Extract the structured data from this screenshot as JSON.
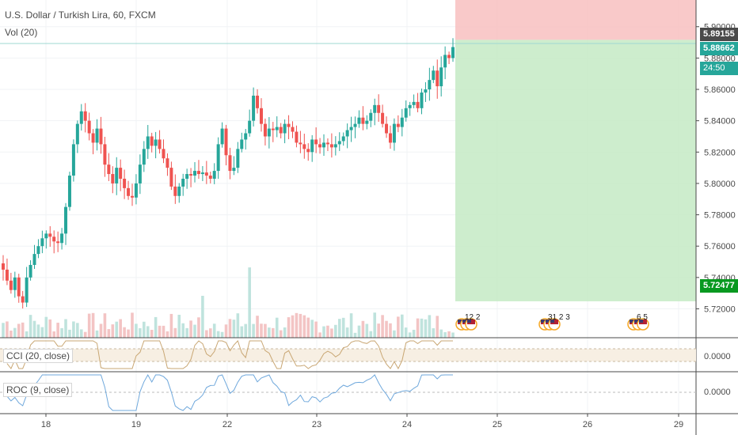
{
  "chart_data": {
    "type": "candlestick",
    "title": "U.S. Dollar / Turkish Lira, 60, FXCM",
    "volume_label": "Vol (20)",
    "y_ticks": [
      "5.90000",
      "5.88000",
      "5.86000",
      "5.84000",
      "5.82000",
      "5.80000",
      "5.78000",
      "5.76000",
      "5.74000",
      "5.72000",
      "5.70000"
    ],
    "ylim": [
      5.694,
      5.914
    ],
    "x_ticks": [
      "18",
      "19",
      "22",
      "23",
      "24",
      "25",
      "26",
      "29"
    ],
    "price_tags": {
      "stop": "5.89155",
      "last": "5.88662",
      "countdown": "24:50",
      "target": "5.72477"
    },
    "position_tool": {
      "entry": 5.8916,
      "stop": 5.914,
      "target": 5.7248
    },
    "events": [
      {
        "label": "12 2"
      },
      {
        "label": "31 2 3"
      },
      {
        "label": "6 5"
      }
    ],
    "cci": {
      "label": "CCI (20, close)",
      "value": "0.0000"
    },
    "roc": {
      "label": "ROC (9, close)",
      "value": "0.0000"
    },
    "series": [
      {
        "name": "close",
        "values": [
          5.745,
          5.738,
          5.732,
          5.74,
          5.728,
          5.724,
          5.74,
          5.748,
          5.755,
          5.76,
          5.765,
          5.768,
          5.766,
          5.763,
          5.762,
          5.768,
          5.785,
          5.805,
          5.825,
          5.838,
          5.846,
          5.84,
          5.832,
          5.826,
          5.835,
          5.825,
          5.812,
          5.806,
          5.8,
          5.81,
          5.803,
          5.797,
          5.792,
          5.791,
          5.8,
          5.812,
          5.822,
          5.83,
          5.824,
          5.828,
          5.822,
          5.816,
          5.81,
          5.798,
          5.792,
          5.798,
          5.803,
          5.806,
          5.805,
          5.808,
          5.806,
          5.807,
          5.805,
          5.803,
          5.808,
          5.825,
          5.835,
          5.818,
          5.808,
          5.81,
          5.822,
          5.828,
          5.832,
          5.84,
          5.856,
          5.848,
          5.838,
          5.83,
          5.835,
          5.834,
          5.836,
          5.832,
          5.838,
          5.836,
          5.833,
          5.826,
          5.825,
          5.822,
          5.82,
          5.828,
          5.825,
          5.823,
          5.826,
          5.825,
          5.823,
          5.825,
          5.827,
          5.83,
          5.834,
          5.836,
          5.838,
          5.842,
          5.838,
          5.84,
          5.845,
          5.85,
          5.845,
          5.838,
          5.832,
          5.826,
          5.838,
          5.836,
          5.842,
          5.848,
          5.85,
          5.852,
          5.848,
          5.858,
          5.86,
          5.866,
          5.872,
          5.862,
          5.874,
          5.882,
          5.88,
          5.887
        ]
      }
    ]
  }
}
